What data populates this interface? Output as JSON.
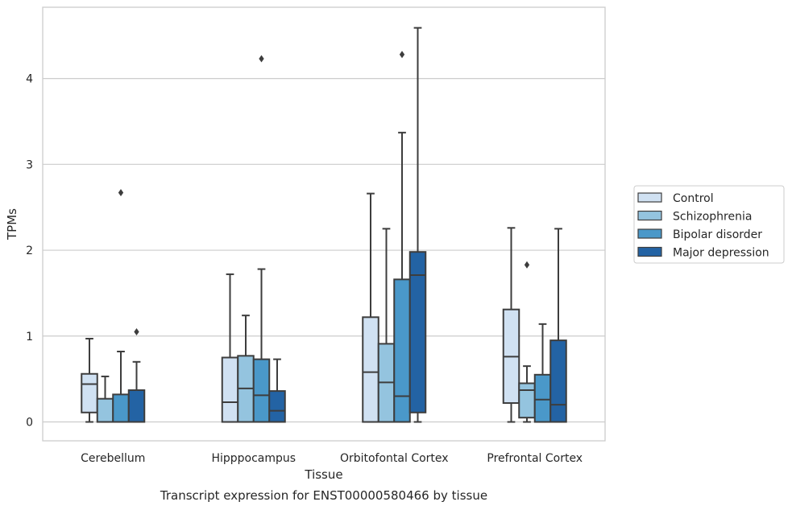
{
  "chart_data": {
    "type": "box",
    "title": "",
    "caption": "Transcript expression for ENST00000580466 by tissue",
    "xlabel": "Tissue",
    "ylabel": "TPMs",
    "ylim": [
      -0.22,
      4.83
    ],
    "yticks": [
      0,
      1,
      2,
      3,
      4
    ],
    "grid": "horizontal",
    "legend_position": "right",
    "categories": [
      "Cerebellum",
      "Hipppocampus",
      "Orbitofontal Cortex",
      "Prefrontal Cortex"
    ],
    "series": [
      {
        "name": "Control",
        "color": "#d0e1f2",
        "boxes": [
          {
            "whislo": 0.0,
            "q1": 0.11,
            "med": 0.44,
            "q3": 0.56,
            "whishi": 0.97,
            "fliers": []
          },
          {
            "whislo": 0.0,
            "q1": 0.0,
            "med": 0.23,
            "q3": 0.75,
            "whishi": 1.72,
            "fliers": []
          },
          {
            "whislo": 0.0,
            "q1": 0.0,
            "med": 0.58,
            "q3": 1.22,
            "whishi": 2.66,
            "fliers": []
          },
          {
            "whislo": 0.0,
            "q1": 0.22,
            "med": 0.76,
            "q3": 1.31,
            "whishi": 2.26,
            "fliers": []
          }
        ]
      },
      {
        "name": "Schizophrenia",
        "color": "#94c4df",
        "boxes": [
          {
            "whislo": 0.0,
            "q1": 0.0,
            "med": 0.0,
            "q3": 0.27,
            "whishi": 0.53,
            "fliers": []
          },
          {
            "whislo": 0.0,
            "q1": 0.0,
            "med": 0.39,
            "q3": 0.77,
            "whishi": 1.24,
            "fliers": []
          },
          {
            "whislo": 0.0,
            "q1": 0.0,
            "med": 0.46,
            "q3": 0.91,
            "whishi": 2.25,
            "fliers": []
          },
          {
            "whislo": 0.0,
            "q1": 0.05,
            "med": 0.37,
            "q3": 0.45,
            "whishi": 0.65,
            "fliers": [
              1.83
            ]
          }
        ]
      },
      {
        "name": "Bipolar disorder",
        "color": "#4a98c9",
        "boxes": [
          {
            "whislo": 0.0,
            "q1": 0.0,
            "med": 0.0,
            "q3": 0.32,
            "whishi": 0.82,
            "fliers": [
              2.67
            ]
          },
          {
            "whislo": 0.0,
            "q1": 0.0,
            "med": 0.31,
            "q3": 0.73,
            "whishi": 1.78,
            "fliers": [
              4.23
            ]
          },
          {
            "whislo": 0.0,
            "q1": 0.0,
            "med": 0.3,
            "q3": 1.66,
            "whishi": 3.37,
            "fliers": [
              4.28
            ]
          },
          {
            "whislo": 0.0,
            "q1": 0.0,
            "med": 0.26,
            "q3": 0.55,
            "whishi": 1.14,
            "fliers": []
          }
        ]
      },
      {
        "name": "Major depression",
        "color": "#2363a4",
        "boxes": [
          {
            "whislo": 0.0,
            "q1": 0.0,
            "med": 0.0,
            "q3": 0.37,
            "whishi": 0.7,
            "fliers": [
              1.05
            ]
          },
          {
            "whislo": 0.0,
            "q1": 0.0,
            "med": 0.13,
            "q3": 0.36,
            "whishi": 0.73,
            "fliers": []
          },
          {
            "whislo": 0.0,
            "q1": 0.11,
            "med": 1.71,
            "q3": 1.98,
            "whishi": 4.59,
            "fliers": []
          },
          {
            "whislo": 0.0,
            "q1": 0.0,
            "med": 0.2,
            "q3": 0.95,
            "whishi": 2.25,
            "fliers": []
          }
        ]
      }
    ]
  }
}
